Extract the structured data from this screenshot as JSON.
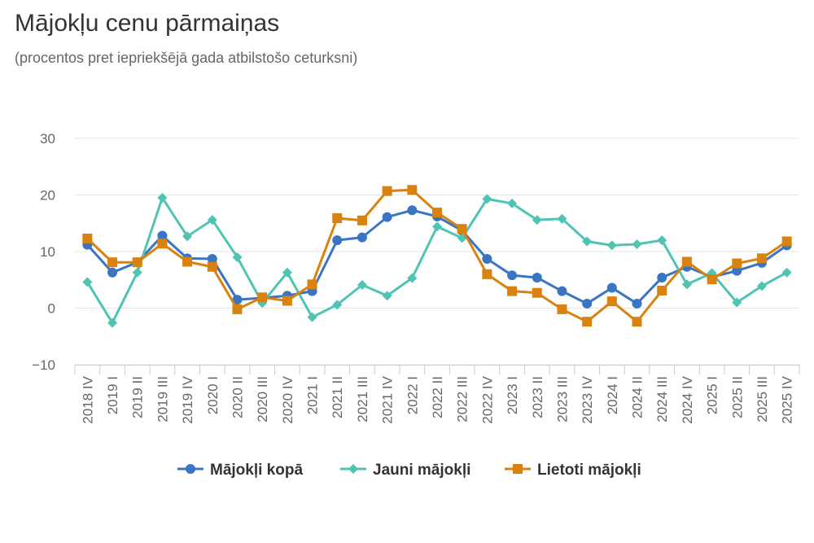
{
  "chart_data": {
    "type": "line",
    "title": "Mājokļu cenu pārmaiņas",
    "subtitle": "(procentos pret iepriekšējā gada atbilstošo ceturksni)",
    "xlabel": "",
    "ylabel": "",
    "ylim": [
      -10,
      30
    ],
    "yticks": [
      30,
      20,
      10,
      0,
      -10
    ],
    "ytick_labels": [
      "30",
      "20",
      "10",
      "0",
      "−10"
    ],
    "categories": [
      "2018 IV",
      "2019 I",
      "2019 II",
      "2019 III",
      "2019 IV",
      "2020 I",
      "2020 II",
      "2020 III",
      "2020 IV",
      "2021 I",
      "2021 II",
      "2021 III",
      "2021 IV",
      "2022 I",
      "2022 II",
      "2022 III",
      "2022 IV",
      "2023 I",
      "2023 II",
      "2023 III",
      "2023 IV",
      "2024 I",
      "2024 II",
      "2024 III",
      "2024 IV",
      "2025 I",
      "2025 II",
      "2025 III",
      "2025 IV"
    ],
    "series": [
      {
        "name": "Mājokļi kopā",
        "color": "#3a75c4",
        "marker": "circle",
        "values": [
          11.2,
          6.3,
          8.1,
          12.8,
          8.8,
          8.7,
          1.5,
          1.8,
          2.2,
          3.0,
          12.0,
          12.5,
          16.1,
          17.3,
          16.2,
          13.7,
          8.7,
          5.8,
          5.4,
          3.0,
          0.8,
          3.6,
          0.8,
          5.4,
          7.3,
          5.5,
          6.6,
          8.0,
          11.1
        ]
      },
      {
        "name": "Jauni mājokļi",
        "color": "#4fc4b3",
        "marker": "diamond",
        "values": [
          4.6,
          -2.6,
          6.3,
          19.5,
          12.7,
          15.6,
          9.0,
          0.9,
          6.3,
          -1.6,
          0.6,
          4.1,
          2.2,
          5.3,
          14.4,
          12.4,
          19.3,
          18.5,
          15.6,
          15.8,
          11.8,
          11.1,
          11.3,
          12.0,
          4.2,
          6.2,
          1.0,
          3.9,
          6.3
        ]
      },
      {
        "name": "Lietoti mājokļi",
        "color": "#d9820f",
        "marker": "square",
        "values": [
          12.3,
          8.1,
          8.1,
          11.4,
          8.2,
          7.3,
          -0.2,
          1.9,
          1.3,
          4.2,
          15.9,
          15.5,
          20.7,
          20.9,
          16.9,
          14.0,
          6.0,
          3.0,
          2.7,
          -0.2,
          -2.4,
          1.2,
          -2.4,
          3.1,
          8.2,
          5.1,
          7.9,
          8.8,
          11.8
        ]
      }
    ],
    "legend_position": "bottom"
  }
}
